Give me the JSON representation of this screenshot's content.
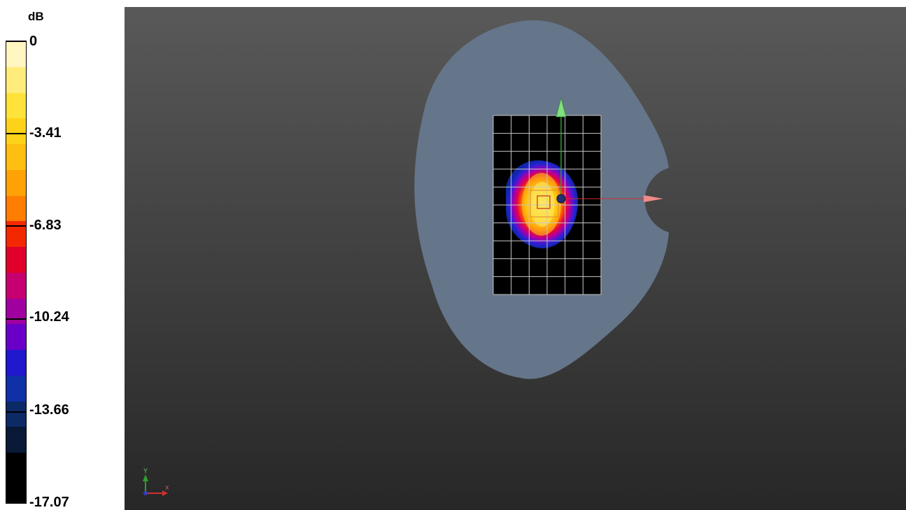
{
  "legend": {
    "unit": "dB",
    "ticks": [
      "0",
      "-3.41",
      "-6.83",
      "-10.24",
      "-13.66",
      "-17.07"
    ],
    "scale_max_db": 0,
    "scale_min_db": -17.07,
    "colors_top_to_bottom": [
      "#fff6c2",
      "#ffec7a",
      "#ffe23a",
      "#ffd21a",
      "#ffbf10",
      "#ffa206",
      "#ff7d00",
      "#f42800",
      "#e0002a",
      "#c60070",
      "#a000a0",
      "#6a00c8",
      "#2018cc",
      "#1030a8",
      "#0c2a66",
      "#081a38",
      "#000000",
      "#000000"
    ]
  },
  "viewport": {
    "background_top": "#595959",
    "background_bottom": "#272727",
    "phantom_color": "#65758a",
    "grid_color": "#c8c8c8",
    "axis_labels": {
      "y": "Y",
      "x": "X"
    }
  }
}
